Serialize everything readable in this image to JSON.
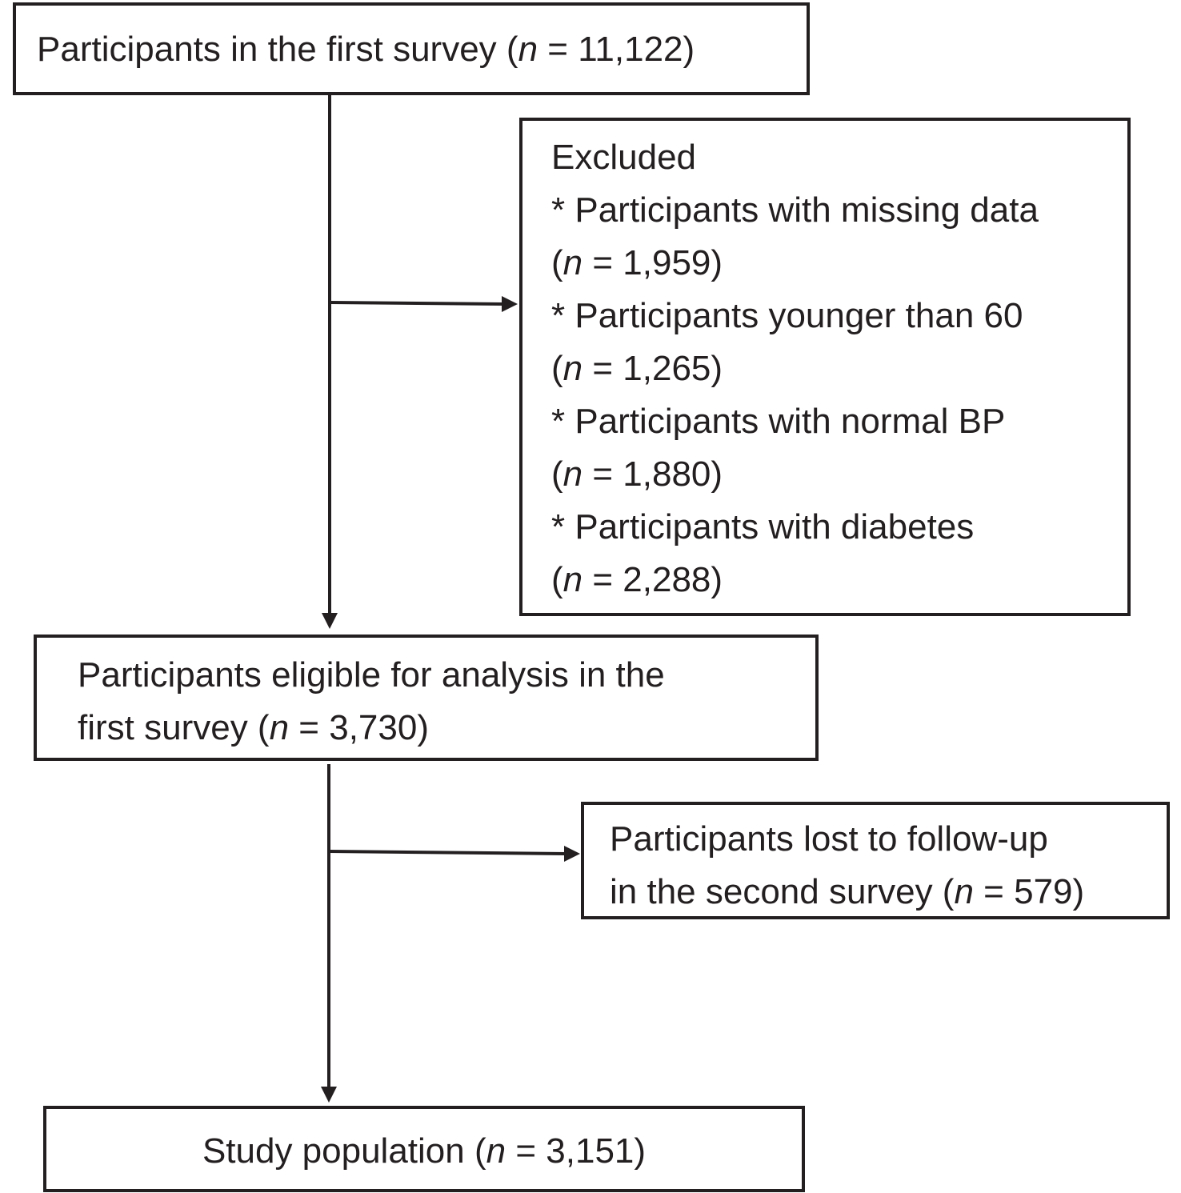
{
  "boxes": {
    "first_survey": {
      "label": "Participants in the first survey",
      "n_var": "n",
      "n_value": "11,122"
    },
    "excluded": {
      "heading": "Excluded",
      "items": [
        {
          "label": "* Participants with missing data",
          "n_var": "n",
          "n_value": "1,959"
        },
        {
          "label": "* Participants younger than 60",
          "n_var": "n",
          "n_value": "1,265"
        },
        {
          "label": "* Participants with normal BP",
          "n_var": "n",
          "n_value": "1,880"
        },
        {
          "label": "* Participants with diabetes",
          "n_var": "n",
          "n_value": "2,288"
        }
      ]
    },
    "eligible": {
      "line1": "Participants eligible for analysis in the",
      "line2": "first survey",
      "n_var": "n",
      "n_value": "3,730"
    },
    "lost": {
      "line1": "Participants lost to follow-up",
      "line2": "in the second survey",
      "n_var": "n",
      "n_value": "579"
    },
    "study": {
      "label": "Study population",
      "n_var": "n",
      "n_value": "3,151"
    }
  },
  "colors": {
    "ink": "#231f20",
    "background": "#ffffff"
  }
}
